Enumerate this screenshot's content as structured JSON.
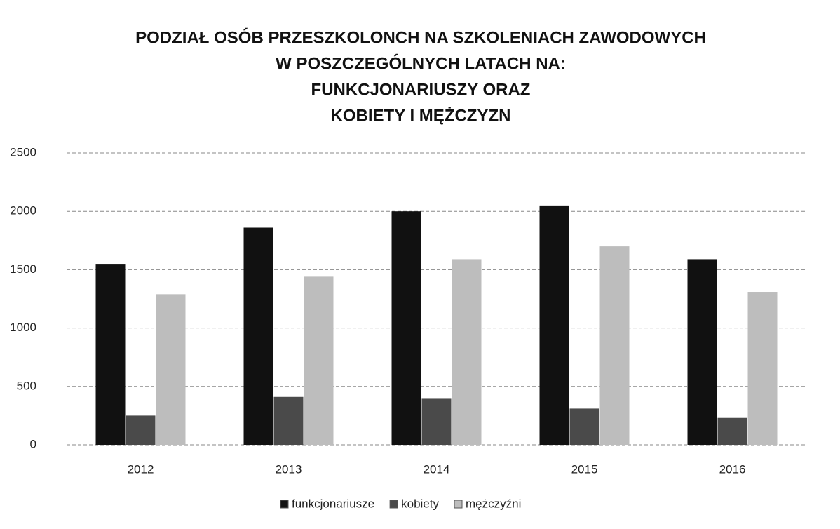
{
  "chart_data": {
    "type": "bar",
    "title": [
      "PODZIAŁ OSÓB PRZESZKOLONCH NA SZKOLENIACH ZAWODOWYCH",
      "W POSZCZEGÓLNYCH LATACH NA:",
      "FUNKCJONARIUSZY ORAZ",
      "KOBIETY I MĘŻCZYZN"
    ],
    "categories": [
      "2012",
      "2013",
      "2014",
      "2015",
      "2016"
    ],
    "series": [
      {
        "name": "funkcjonariusze",
        "color": "#111111",
        "values": [
          1550,
          1860,
          2000,
          2050,
          1590
        ]
      },
      {
        "name": "kobiety",
        "color": "#4a4a4a",
        "values": [
          250,
          410,
          400,
          310,
          230
        ]
      },
      {
        "name": "mężczyźni",
        "color": "#bdbdbd",
        "values": [
          1290,
          1440,
          1590,
          1700,
          1310
        ]
      }
    ],
    "ylim": [
      0,
      2500
    ],
    "yticks": [
      0,
      500,
      1000,
      1500,
      2000,
      2500
    ],
    "grid": true,
    "legend": "bottom"
  }
}
